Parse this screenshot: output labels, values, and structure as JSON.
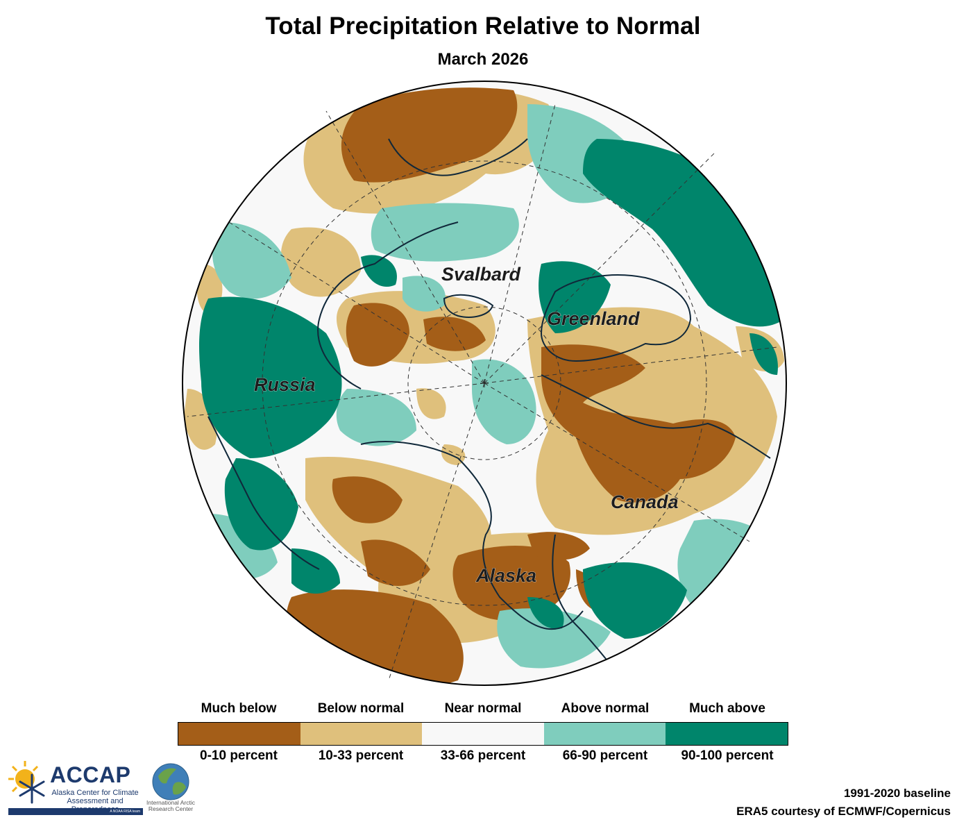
{
  "header": {
    "title": "Total Precipitation Relative to Normal",
    "subtitle": "March 2026"
  },
  "map": {
    "projection": "north-polar-stereographic",
    "graticule": "dashed",
    "regions": [
      {
        "id": "svalbard",
        "label": "Svalbard"
      },
      {
        "id": "greenland",
        "label": "Greenland"
      },
      {
        "id": "russia",
        "label": "Russia"
      },
      {
        "id": "canada",
        "label": "Canada"
      },
      {
        "id": "alaska",
        "label": "Alaska"
      }
    ]
  },
  "legend": {
    "categories": [
      {
        "name": "Much below",
        "range": "0-10 percent",
        "color": "#a45e18"
      },
      {
        "name": "Below normal",
        "range": "10-33 percent",
        "color": "#dfc07c"
      },
      {
        "name": "Near normal",
        "range": "33-66 percent",
        "color": "#f8f8f8"
      },
      {
        "name": "Above normal",
        "range": "66-90 percent",
        "color": "#7fcdbd"
      },
      {
        "name": "Much above",
        "range": "90-100 percent",
        "color": "#00856b"
      }
    ]
  },
  "footer": {
    "baseline": "1991-2020 baseline",
    "source": "ERA5 courtesy of ECMWF/Copernicus"
  },
  "logos": {
    "accap": {
      "name": "ACCAP",
      "full_name": "Alaska Center for Climate Assessment and Preparedness",
      "tagline": "A NOAA RISA team"
    },
    "iarc": {
      "full_name": "International Arctic Research Center"
    }
  },
  "colors": {
    "much_below": "#a45e18",
    "below": "#dfc07c",
    "near": "#f8f8f8",
    "above": "#7fcdbd",
    "much_above": "#00856b",
    "coastline": "#10283a",
    "accap_navy": "#1d3a6d"
  }
}
